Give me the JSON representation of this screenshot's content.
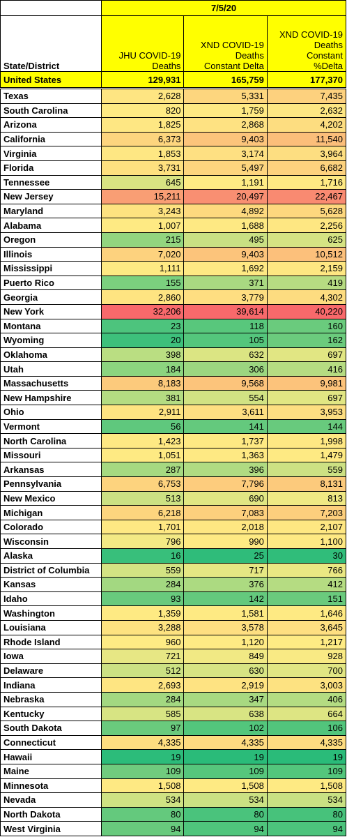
{
  "date": "7/5/20",
  "headers": {
    "state": "State/District",
    "jhu": [
      "JHU COVID-19",
      "Deaths"
    ],
    "xnd_delta": [
      "XND COVID-19",
      "Deaths",
      "Constant Delta"
    ],
    "xnd_pct": [
      "XND COVID-19",
      "Deaths",
      "Constant",
      "%Delta"
    ]
  },
  "total": {
    "name": "United States",
    "jhu": "129,931",
    "delta": "165,759",
    "pct": "177,370"
  },
  "rows": [
    {
      "name": "Texas",
      "jhu": "2,628",
      "delta": "5,331",
      "pct": "7,435",
      "colors": [
        "#fee582",
        "#fdd67e",
        "#fdd17e"
      ]
    },
    {
      "name": "South Carolina",
      "jhu": "820",
      "delta": "1,759",
      "pct": "2,632",
      "colors": [
        "#feea83",
        "#fee983",
        "#fde683"
      ]
    },
    {
      "name": "Arizona",
      "jhu": "1,825",
      "delta": "2,868",
      "pct": "4,202",
      "colors": [
        "#fee783",
        "#fee282",
        "#fddd80"
      ]
    },
    {
      "name": "California",
      "jhu": "6,373",
      "delta": "9,403",
      "pct": "11,540",
      "colors": [
        "#fdd57e",
        "#fcc47b",
        "#fbbe7a"
      ]
    },
    {
      "name": "Virginia",
      "jhu": "1,853",
      "delta": "3,174",
      "pct": "3,964",
      "colors": [
        "#fee783",
        "#fee082",
        "#fdde81"
      ]
    },
    {
      "name": "Florida",
      "jhu": "3,731",
      "delta": "5,497",
      "pct": "6,682",
      "colors": [
        "#fee07f",
        "#fdd57e",
        "#fdd27e"
      ]
    },
    {
      "name": "Tennessee",
      "jhu": "645",
      "delta": "1,191",
      "pct": "1,716",
      "colors": [
        "#d9e382",
        "#feeb84",
        "#fee983"
      ]
    },
    {
      "name": "New Jersey",
      "jhu": "15,211",
      "delta": "20,497",
      "pct": "22,467",
      "colors": [
        "#f99e74",
        "#f98f72",
        "#f98a71"
      ]
    },
    {
      "name": "Maryland",
      "jhu": "3,243",
      "delta": "4,892",
      "pct": "5,628",
      "colors": [
        "#fde280",
        "#fdd97e",
        "#fdd77e"
      ]
    },
    {
      "name": "Alabama",
      "jhu": "1,007",
      "delta": "1,688",
      "pct": "2,256",
      "colors": [
        "#feea83",
        "#fee983",
        "#fee782"
      ]
    },
    {
      "name": "Oregon",
      "jhu": "215",
      "delta": "495",
      "pct": "625",
      "colors": [
        "#93d57f",
        "#c9e083",
        "#d5e383"
      ]
    },
    {
      "name": "Illinois",
      "jhu": "7,020",
      "delta": "9,403",
      "pct": "10,512",
      "colors": [
        "#fdd27e",
        "#fcc47b",
        "#fcc07b"
      ]
    },
    {
      "name": "Mississippi",
      "jhu": "1,111",
      "delta": "1,692",
      "pct": "2,159",
      "colors": [
        "#feea83",
        "#fee983",
        "#fee782"
      ]
    },
    {
      "name": "Puerto Rico",
      "jhu": "155",
      "delta": "371",
      "pct": "419",
      "colors": [
        "#7bd07e",
        "#a9d981",
        "#b7dc82"
      ]
    },
    {
      "name": "Georgia",
      "jhu": "2,860",
      "delta": "3,779",
      "pct": "4,302",
      "colors": [
        "#fee481",
        "#fede81",
        "#fddc80"
      ]
    },
    {
      "name": "New York",
      "jhu": "32,206",
      "delta": "39,614",
      "pct": "40,220",
      "colors": [
        "#f8696b",
        "#f8696b",
        "#f8696b"
      ]
    },
    {
      "name": "Montana",
      "jhu": "23",
      "delta": "118",
      "pct": "160",
      "colors": [
        "#4dc47d",
        "#58c77c",
        "#6acb7d"
      ]
    },
    {
      "name": "Wyoming",
      "jhu": "20",
      "delta": "105",
      "pct": "162",
      "colors": [
        "#3dc07b",
        "#54c67c",
        "#6bcb7d"
      ]
    },
    {
      "name": "Oklahoma",
      "jhu": "398",
      "delta": "632",
      "pct": "697",
      "colors": [
        "#bade82",
        "#dbe583",
        "#e1e683"
      ]
    },
    {
      "name": "Utah",
      "jhu": "184",
      "delta": "306",
      "pct": "416",
      "colors": [
        "#8cd47f",
        "#9cd680",
        "#b6dc82"
      ]
    },
    {
      "name": "Massachusetts",
      "jhu": "8,183",
      "delta": "9,568",
      "pct": "9,981",
      "colors": [
        "#fcca7c",
        "#fcc47b",
        "#fcc37b"
      ]
    },
    {
      "name": "New Hampshire",
      "jhu": "381",
      "delta": "554",
      "pct": "697",
      "colors": [
        "#b4dc82",
        "#d1e283",
        "#e1e683"
      ]
    },
    {
      "name": "Ohio",
      "jhu": "2,911",
      "delta": "3,611",
      "pct": "3,953",
      "colors": [
        "#fee481",
        "#fedf81",
        "#fdde81"
      ]
    },
    {
      "name": "Vermont",
      "jhu": "56",
      "delta": "141",
      "pct": "144",
      "colors": [
        "#5fc87d",
        "#64c97d",
        "#68ca7d"
      ]
    },
    {
      "name": "North Carolina",
      "jhu": "1,423",
      "delta": "1,737",
      "pct": "1,998",
      "colors": [
        "#fee983",
        "#fee983",
        "#fee883"
      ]
    },
    {
      "name": "Missouri",
      "jhu": "1,051",
      "delta": "1,363",
      "pct": "1,479",
      "colors": [
        "#feea83",
        "#fee983",
        "#feea83"
      ]
    },
    {
      "name": "Arkansas",
      "jhu": "287",
      "delta": "396",
      "pct": "559",
      "colors": [
        "#a6d981",
        "#b0db82",
        "#cde183"
      ]
    },
    {
      "name": "Pennsylvania",
      "jhu": "6,753",
      "delta": "7,796",
      "pct": "8,131",
      "colors": [
        "#fdd37e",
        "#fdcc7d",
        "#fcca7c"
      ]
    },
    {
      "name": "New Mexico",
      "jhu": "513",
      "delta": "690",
      "pct": "813",
      "colors": [
        "#cce183",
        "#e1e683",
        "#f0e984"
      ]
    },
    {
      "name": "Michigan",
      "jhu": "6,218",
      "delta": "7,083",
      "pct": "7,203",
      "colors": [
        "#fdd57e",
        "#fdd07d",
        "#fdcf7d"
      ]
    },
    {
      "name": "Colorado",
      "jhu": "1,701",
      "delta": "2,018",
      "pct": "2,107",
      "colors": [
        "#fee883",
        "#fee782",
        "#fee782"
      ]
    },
    {
      "name": "Wisconsin",
      "jhu": "796",
      "delta": "990",
      "pct": "1,100",
      "colors": [
        "#f3e984",
        "#feea83",
        "#fee983"
      ]
    },
    {
      "name": "Alaska",
      "jhu": "16",
      "delta": "25",
      "pct": "30",
      "colors": [
        "#38bf7b",
        "#2fbc7a",
        "#30bd7a"
      ]
    },
    {
      "name": "District of Columbia",
      "jhu": "559",
      "delta": "717",
      "pct": "766",
      "colors": [
        "#d3e383",
        "#e5e783",
        "#eae883"
      ]
    },
    {
      "name": "Kansas",
      "jhu": "284",
      "delta": "376",
      "pct": "412",
      "colors": [
        "#a3d881",
        "#acda81",
        "#b5dc82"
      ]
    },
    {
      "name": "Idaho",
      "jhu": "93",
      "delta": "142",
      "pct": "151",
      "colors": [
        "#68ca7d",
        "#64c97d",
        "#6aca7d"
      ]
    },
    {
      "name": "Washington",
      "jhu": "1,359",
      "delta": "1,581",
      "pct": "1,646",
      "colors": [
        "#feea83",
        "#feea83",
        "#feea83"
      ]
    },
    {
      "name": "Louisiana",
      "jhu": "3,288",
      "delta": "3,578",
      "pct": "3,645",
      "colors": [
        "#fde280",
        "#fedf81",
        "#fedf81"
      ]
    },
    {
      "name": "Rhode Island",
      "jhu": "960",
      "delta": "1,120",
      "pct": "1,217",
      "colors": [
        "#feeb84",
        "#feeb84",
        "#feeb84"
      ]
    },
    {
      "name": "Iowa",
      "jhu": "721",
      "delta": "849",
      "pct": "928",
      "colors": [
        "#e7e784",
        "#f1e984",
        "#f9ea84"
      ]
    },
    {
      "name": "Delaware",
      "jhu": "512",
      "delta": "630",
      "pct": "700",
      "colors": [
        "#cce183",
        "#d7e483",
        "#e1e683"
      ]
    },
    {
      "name": "Indiana",
      "jhu": "2,693",
      "delta": "2,919",
      "pct": "3,003",
      "colors": [
        "#fee582",
        "#fee382",
        "#fde281"
      ]
    },
    {
      "name": "Nebraska",
      "jhu": "284",
      "delta": "347",
      "pct": "406",
      "colors": [
        "#a3d881",
        "#a8d981",
        "#b4dc82"
      ]
    },
    {
      "name": "Kentucky",
      "jhu": "585",
      "delta": "638",
      "pct": "664",
      "colors": [
        "#d7e483",
        "#d8e483",
        "#dde583"
      ]
    },
    {
      "name": "South Dakota",
      "jhu": "97",
      "delta": "102",
      "pct": "106",
      "colors": [
        "#6aca7d",
        "#53c67c",
        "#52c57c"
      ]
    },
    {
      "name": "Connecticut",
      "jhu": "4,335",
      "delta": "4,335",
      "pct": "4,335",
      "colors": [
        "#fdde80",
        "#fddb80",
        "#fddc80"
      ]
    },
    {
      "name": "Hawaii",
      "jhu": "19",
      "delta": "19",
      "pct": "19",
      "colors": [
        "#2cbc7a",
        "#2abb79",
        "#2abb79"
      ]
    },
    {
      "name": "Maine",
      "jhu": "109",
      "delta": "109",
      "pct": "109",
      "colors": [
        "#70cb7e",
        "#56c67c",
        "#53c67c"
      ]
    },
    {
      "name": "Minnesota",
      "jhu": "1,508",
      "delta": "1,508",
      "pct": "1,508",
      "colors": [
        "#fee983",
        "#feea83",
        "#feea83"
      ]
    },
    {
      "name": "Nevada",
      "jhu": "534",
      "delta": "534",
      "pct": "534",
      "colors": [
        "#cfe283",
        "#cbe183",
        "#c9e183"
      ]
    },
    {
      "name": "North Dakota",
      "jhu": "80",
      "delta": "80",
      "pct": "80",
      "colors": [
        "#64c97d",
        "#4ac37c",
        "#47c27b"
      ]
    },
    {
      "name": "West Virginia",
      "jhu": "94",
      "delta": "94",
      "pct": "94",
      "colors": [
        "#68ca7d",
        "#4fc57c",
        "#4cc37c"
      ]
    }
  ]
}
